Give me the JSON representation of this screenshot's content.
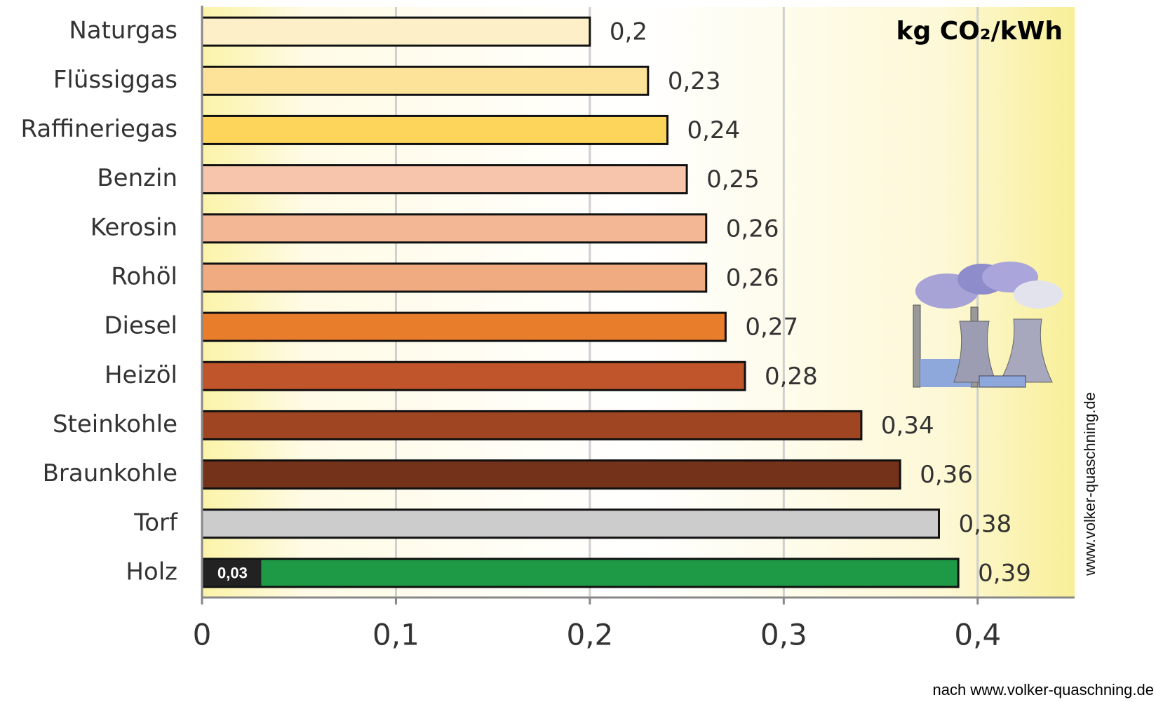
{
  "chart_data": {
    "type": "bar",
    "orientation": "horizontal",
    "title": "kg CO₂/kWh",
    "categories": [
      "Naturgas",
      "Flüssiggas",
      "Raffineriegas",
      "Benzin",
      "Kerosin",
      "Rohöl",
      "Diesel",
      "Heizöl",
      "Steinkohle",
      "Braunkohle",
      "Torf",
      "Holz"
    ],
    "values": [
      0.2,
      0.23,
      0.24,
      0.25,
      0.26,
      0.26,
      0.27,
      0.28,
      0.34,
      0.36,
      0.38,
      0.39
    ],
    "value_labels": [
      "0,2",
      "0,23",
      "0,24",
      "0,25",
      "0,26",
      "0,26",
      "0,27",
      "0,28",
      "0,34",
      "0,36",
      "0,38",
      "0,39"
    ],
    "colors": [
      "#fdefc8",
      "#fde39a",
      "#fdd55a",
      "#f6c5ab",
      "#f3b795",
      "#f0ac80",
      "#e87d2c",
      "#c0542a",
      "#a04522",
      "#74321a",
      "#cccccc",
      "#1e9a46"
    ],
    "inner": {
      "category": "Holz",
      "value": 0.03,
      "value_label": "0,03",
      "color": "#222222"
    },
    "xlim": [
      0,
      0.45
    ],
    "xticks": [
      0,
      {
        "value": 0.1,
        "label": "0,1"
      },
      {
        "value": 0.2,
        "label": "0,2"
      },
      {
        "value": 0.3,
        "label": "0,3"
      },
      {
        "value": 0.4,
        "label": "0,4"
      }
    ],
    "grid": true,
    "side_note": "www.volker-quaschning.de",
    "source": "nach www.volker-quaschning.de"
  }
}
